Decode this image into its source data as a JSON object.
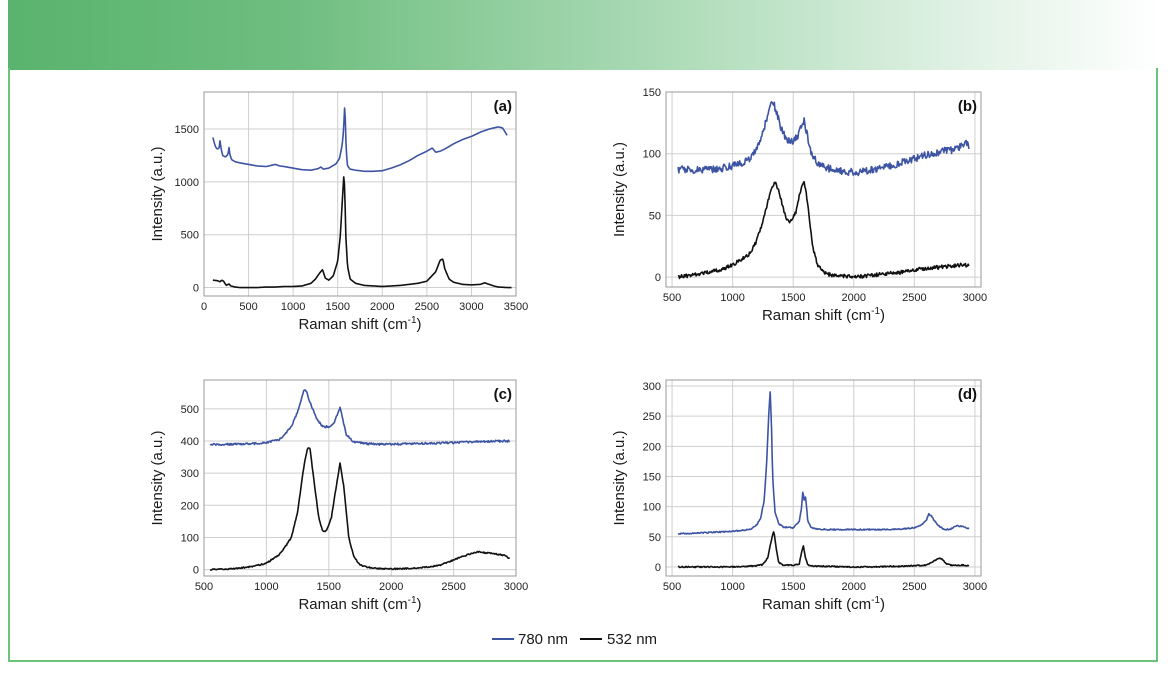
{
  "legend": {
    "items": [
      {
        "label": "780 nm",
        "color": "#3d54a3"
      },
      {
        "label": "532 nm",
        "color": "#111111"
      }
    ]
  },
  "colors": {
    "accent": "#6cc47c",
    "grid": "#cfcfcf"
  },
  "chart_data": [
    {
      "panel": "(a)",
      "type": "line",
      "xlabel": "Raman shift (cm",
      "xlabel_sup": "-1",
      "xlabel_end": ")",
      "ylabel": "Intensity (a.u.)",
      "xlim": [
        0,
        3500
      ],
      "ylim": [
        -80,
        1850
      ],
      "xticks": [
        0,
        500,
        1000,
        1500,
        2000,
        2500,
        3000,
        3500
      ],
      "yticks": [
        0,
        500,
        1000,
        1500
      ],
      "series": [
        {
          "name": "780 nm",
          "color": "#3d54a3",
          "x": [
            100,
            115,
            130,
            150,
            170,
            180,
            190,
            210,
            240,
            270,
            280,
            290,
            310,
            350,
            400,
            500,
            600,
            700,
            800,
            850,
            900,
            1000,
            1100,
            1200,
            1280,
            1310,
            1340,
            1400,
            1480,
            1520,
            1550,
            1565,
            1580,
            1595,
            1610,
            1640,
            1700,
            1800,
            1900,
            2000,
            2100,
            2200,
            2300,
            2400,
            2500,
            2560,
            2580,
            2600,
            2650,
            2700,
            2800,
            2900,
            3000,
            3100,
            3200,
            3300,
            3350,
            3400
          ],
          "y": [
            1420,
            1370,
            1330,
            1310,
            1320,
            1400,
            1320,
            1250,
            1235,
            1260,
            1330,
            1260,
            1210,
            1190,
            1180,
            1165,
            1150,
            1145,
            1165,
            1150,
            1145,
            1130,
            1115,
            1110,
            1125,
            1140,
            1120,
            1130,
            1170,
            1220,
            1350,
            1480,
            1750,
            1300,
            1150,
            1120,
            1110,
            1100,
            1100,
            1105,
            1130,
            1160,
            1200,
            1250,
            1290,
            1320,
            1300,
            1280,
            1290,
            1310,
            1360,
            1400,
            1430,
            1470,
            1500,
            1520,
            1510,
            1440
          ]
        },
        {
          "name": "532 nm",
          "color": "#111111",
          "x": [
            100,
            150,
            180,
            200,
            220,
            250,
            280,
            300,
            350,
            400,
            500,
            600,
            700,
            800,
            900,
            1000,
            1100,
            1200,
            1250,
            1300,
            1330,
            1360,
            1400,
            1450,
            1500,
            1530,
            1550,
            1570,
            1580,
            1590,
            1610,
            1640,
            1700,
            1800,
            1900,
            2000,
            2100,
            2200,
            2300,
            2400,
            2500,
            2600,
            2650,
            2680,
            2700,
            2750,
            2800,
            2900,
            3000,
            3100,
            3150,
            3200,
            3250,
            3300,
            3400,
            3450
          ],
          "y": [
            70,
            65,
            55,
            70,
            60,
            20,
            35,
            15,
            5,
            0,
            0,
            0,
            5,
            5,
            10,
            10,
            15,
            40,
            80,
            140,
            170,
            90,
            70,
            110,
            250,
            500,
            800,
            1080,
            900,
            500,
            200,
            80,
            40,
            20,
            15,
            10,
            15,
            20,
            30,
            40,
            60,
            150,
            260,
            270,
            180,
            80,
            50,
            30,
            25,
            30,
            45,
            30,
            15,
            5,
            0,
            0
          ]
        }
      ]
    },
    {
      "panel": "(b)",
      "type": "line",
      "xlabel": "Raman shift (cm",
      "xlabel_sup": "-1",
      "xlabel_end": ")",
      "ylabel": "Intensity (a.u.)",
      "xlim": [
        450,
        3050
      ],
      "ylim": [
        -8,
        150
      ],
      "xticks": [
        500,
        1000,
        1500,
        2000,
        2500,
        3000
      ],
      "yticks": [
        0,
        50,
        100,
        150
      ],
      "series": [
        {
          "name": "780 nm",
          "color": "#3d54a3",
          "x": [
            550,
            700,
            900,
            1000,
            1100,
            1150,
            1200,
            1250,
            1300,
            1330,
            1360,
            1400,
            1450,
            1500,
            1540,
            1570,
            1590,
            1610,
            1650,
            1700,
            1800,
            1900,
            2000,
            2100,
            2200,
            2300,
            2400,
            2500,
            2600,
            2700,
            2800,
            2850,
            2900,
            2920,
            2950
          ],
          "y": [
            87,
            87,
            88,
            90,
            93,
            97,
            105,
            118,
            135,
            142,
            135,
            120,
            111,
            110,
            115,
            122,
            127,
            118,
            100,
            92,
            88,
            86,
            85,
            86,
            88,
            90,
            93,
            96,
            99,
            101,
            103,
            104,
            107,
            112,
            104
          ],
          "noise": 3
        },
        {
          "name": "532 nm",
          "color": "#111111",
          "x": [
            550,
            700,
            800,
            900,
            1000,
            1100,
            1150,
            1200,
            1250,
            1300,
            1330,
            1350,
            1380,
            1420,
            1450,
            1480,
            1520,
            1560,
            1590,
            1620,
            1660,
            1700,
            1750,
            1800,
            1900,
            2000,
            2100,
            2200,
            2300,
            2400,
            2500,
            2600,
            2700,
            2800,
            2900,
            2950
          ],
          "y": [
            0,
            2,
            4,
            6,
            10,
            16,
            20,
            30,
            45,
            65,
            74,
            77,
            70,
            55,
            46,
            45,
            52,
            70,
            78,
            60,
            25,
            10,
            4,
            2,
            1,
            0,
            1,
            2,
            3,
            4,
            6,
            7,
            8,
            9,
            10,
            9
          ],
          "noise": 1.5
        }
      ]
    },
    {
      "panel": "(c)",
      "type": "line",
      "xlabel": "Raman shift (cm",
      "xlabel_sup": "-1",
      "xlabel_end": ")",
      "ylabel": "Intensity (a.u.)",
      "xlim": [
        500,
        3000
      ],
      "ylim": [
        -20,
        590
      ],
      "xticks": [
        500,
        1000,
        1500,
        2000,
        2500,
        3000
      ],
      "yticks": [
        0,
        100,
        200,
        300,
        400,
        500
      ],
      "series": [
        {
          "name": "780 nm",
          "color": "#3d54a3",
          "x": [
            550,
            700,
            800,
            900,
            1000,
            1100,
            1150,
            1200,
            1250,
            1280,
            1300,
            1320,
            1350,
            1400,
            1450,
            1500,
            1540,
            1570,
            1590,
            1610,
            1640,
            1700,
            1800,
            1900,
            2000,
            2100,
            2200,
            2300,
            2400,
            2500,
            2600,
            2700,
            2800,
            2900,
            2950
          ],
          "y": [
            390,
            390,
            391,
            392,
            395,
            405,
            420,
            445,
            490,
            530,
            560,
            555,
            520,
            470,
            445,
            445,
            455,
            485,
            505,
            470,
            420,
            397,
            392,
            390,
            390,
            391,
            392,
            393,
            394,
            395,
            397,
            398,
            399,
            400,
            400
          ],
          "noise": 3
        },
        {
          "name": "532 nm",
          "color": "#111111",
          "x": [
            550,
            700,
            800,
            900,
            1000,
            1100,
            1150,
            1200,
            1250,
            1300,
            1330,
            1350,
            1380,
            1420,
            1450,
            1480,
            1520,
            1560,
            1590,
            1620,
            1660,
            1700,
            1750,
            1800,
            1900,
            2000,
            2100,
            2200,
            2300,
            2400,
            2500,
            2600,
            2700,
            2800,
            2900,
            2950
          ],
          "y": [
            0,
            2,
            5,
            10,
            20,
            45,
            70,
            100,
            180,
            320,
            380,
            375,
            280,
            160,
            120,
            120,
            160,
            260,
            330,
            260,
            100,
            40,
            15,
            8,
            3,
            2,
            3,
            5,
            8,
            15,
            30,
            45,
            55,
            50,
            45,
            35
          ],
          "noise": 2
        }
      ]
    },
    {
      "panel": "(d)",
      "type": "line",
      "xlabel": "Raman shift (cm",
      "xlabel_sup": "-1",
      "xlabel_end": ")",
      "ylabel": "Intensity (a.u.)",
      "xlim": [
        450,
        3050
      ],
      "ylim": [
        -15,
        310
      ],
      "xticks": [
        500,
        1000,
        1500,
        2000,
        2500,
        3000
      ],
      "yticks": [
        0,
        50,
        100,
        150,
        200,
        250,
        300
      ],
      "series": [
        {
          "name": "780 nm",
          "color": "#3d54a3",
          "x": [
            550,
            700,
            800,
            900,
            1000,
            1100,
            1150,
            1200,
            1230,
            1260,
            1280,
            1300,
            1310,
            1320,
            1330,
            1350,
            1380,
            1420,
            1500,
            1550,
            1570,
            1580,
            1590,
            1600,
            1610,
            1620,
            1650,
            1700,
            1800,
            1900,
            2000,
            2100,
            2200,
            2300,
            2400,
            2500,
            2550,
            2600,
            2620,
            2640,
            2660,
            2700,
            2750,
            2800,
            2850,
            2900,
            2950
          ],
          "y": [
            55,
            56,
            57,
            58,
            59,
            61,
            63,
            70,
            80,
            110,
            170,
            260,
            290,
            240,
            150,
            90,
            72,
            66,
            65,
            75,
            100,
            128,
            110,
            118,
            100,
            75,
            65,
            63,
            62,
            62,
            62,
            62,
            62,
            62,
            63,
            65,
            68,
            78,
            88,
            85,
            78,
            68,
            62,
            63,
            68,
            67,
            63
          ],
          "noise": 1
        },
        {
          "name": "532 nm",
          "color": "#111111",
          "x": [
            550,
            700,
            800,
            900,
            1000,
            1100,
            1200,
            1250,
            1290,
            1320,
            1340,
            1360,
            1380,
            1420,
            1500,
            1550,
            1570,
            1585,
            1600,
            1620,
            1650,
            1700,
            1800,
            1900,
            2000,
            2100,
            2200,
            2300,
            2400,
            2500,
            2600,
            2650,
            2700,
            2730,
            2760,
            2800,
            2900,
            2950
          ],
          "y": [
            0,
            0,
            0,
            0,
            0,
            1,
            2,
            4,
            15,
            45,
            60,
            30,
            8,
            3,
            3,
            5,
            25,
            35,
            15,
            4,
            2,
            1,
            1,
            0,
            0,
            0,
            0,
            1,
            1,
            2,
            3,
            8,
            15,
            13,
            6,
            3,
            3,
            2
          ],
          "noise": 1
        }
      ]
    }
  ]
}
